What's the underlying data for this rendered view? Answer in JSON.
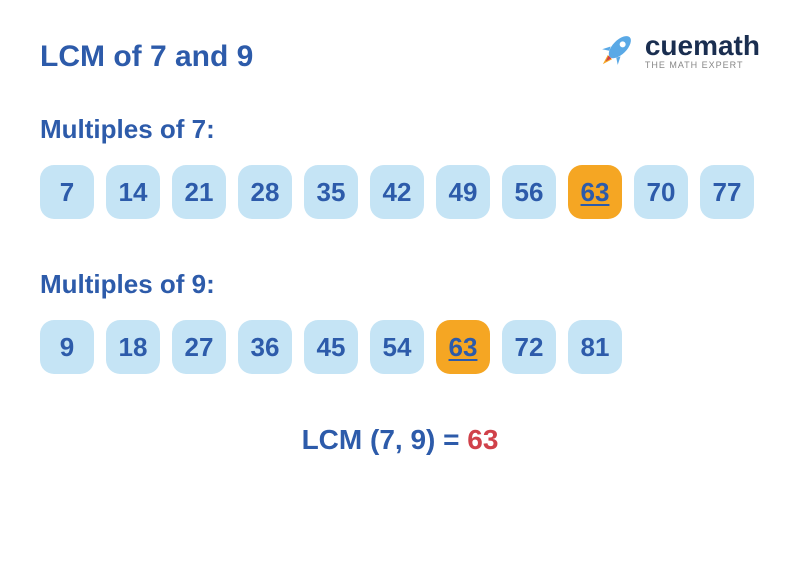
{
  "logo": {
    "brand": "cuemath",
    "tagline": "THE MATH EXPERT"
  },
  "title": "LCM of 7 and 9",
  "sections": [
    {
      "label": "Multiples of 7:",
      "items": [
        {
          "val": "7",
          "hl": false
        },
        {
          "val": "14",
          "hl": false
        },
        {
          "val": "21",
          "hl": false
        },
        {
          "val": "28",
          "hl": false
        },
        {
          "val": "35",
          "hl": false
        },
        {
          "val": "42",
          "hl": false
        },
        {
          "val": "49",
          "hl": false
        },
        {
          "val": "56",
          "hl": false
        },
        {
          "val": "63",
          "hl": true
        },
        {
          "val": "70",
          "hl": false
        },
        {
          "val": "77",
          "hl": false
        }
      ]
    },
    {
      "label": "Multiples of 9:",
      "items": [
        {
          "val": "9",
          "hl": false
        },
        {
          "val": "18",
          "hl": false
        },
        {
          "val": "27",
          "hl": false
        },
        {
          "val": "36",
          "hl": false
        },
        {
          "val": "45",
          "hl": false
        },
        {
          "val": "54",
          "hl": false
        },
        {
          "val": "63",
          "hl": true
        },
        {
          "val": "72",
          "hl": false
        },
        {
          "val": "81",
          "hl": false
        }
      ]
    }
  ],
  "result": {
    "prefix": "LCM (7, 9) = ",
    "value": "63"
  },
  "colors": {
    "chip_normal": "#c5e4f5",
    "chip_highlight": "#f5a623",
    "text_primary": "#2d5baa",
    "text_result": "#d0414a",
    "rocket_body": "#5aa9e6",
    "rocket_flame1": "#f5a623",
    "rocket_flame2": "#d0414a"
  }
}
